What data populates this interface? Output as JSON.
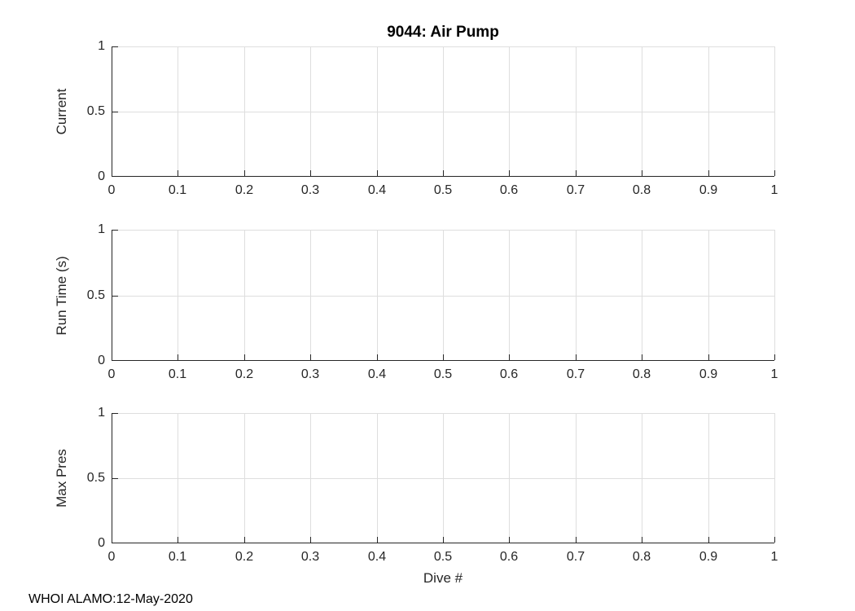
{
  "figure": {
    "title": "9044: Air Pump",
    "xlabel": "Dive #",
    "watermark": "WHOI ALAMO:12-May-2020"
  },
  "chart_data": {
    "type": "line",
    "title": "9044: Air Pump",
    "xlabel": "Dive #",
    "annotation": "WHOI ALAMO:12-May-2020",
    "xlim": [
      0,
      1
    ],
    "ylim": [
      0,
      1
    ],
    "x_ticks": [
      0,
      0.1,
      0.2,
      0.3,
      0.4,
      0.5,
      0.6,
      0.7,
      0.8,
      0.9,
      1
    ],
    "x_tick_labels": [
      "0",
      "0.1",
      "0.2",
      "0.3",
      "0.4",
      "0.5",
      "0.6",
      "0.7",
      "0.8",
      "0.9",
      "1"
    ],
    "y_ticks": [
      0,
      0.5,
      1
    ],
    "y_tick_labels": [
      "0",
      "0.5",
      "1"
    ],
    "grid": true,
    "legend": null,
    "subplots": [
      {
        "ylabel": "Current",
        "series": []
      },
      {
        "ylabel": "Run Time (s)",
        "series": []
      },
      {
        "ylabel": "Max Pres",
        "series": []
      }
    ],
    "colors": {
      "axis": "#262626",
      "grid": "#dedede",
      "background": "#ffffff",
      "title": "#000000"
    }
  }
}
